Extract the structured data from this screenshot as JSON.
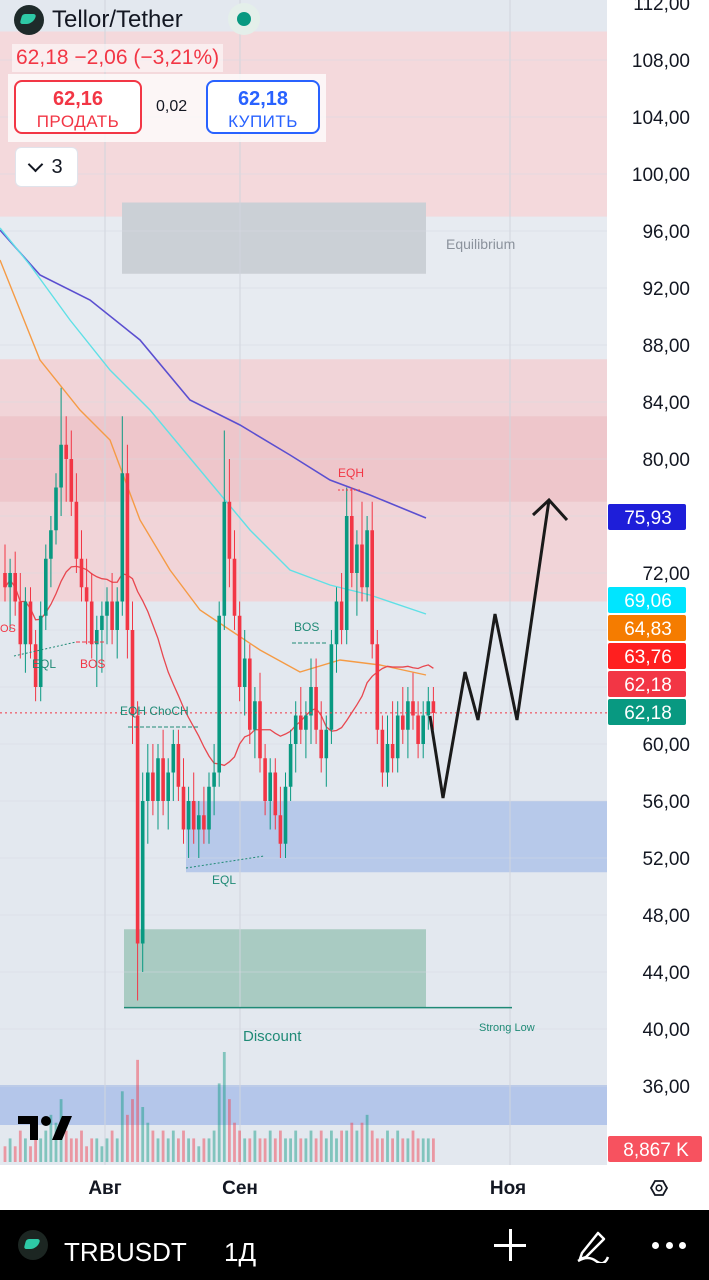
{
  "header": {
    "symbol_title": "Tellor/Tether",
    "price_change": "62,18  −2,06 (−3,21%)",
    "sell_price": "62,16",
    "sell_label": "ПРОДАТЬ",
    "spread": "0,02",
    "buy_price": "62,18",
    "buy_label": "КУПИТЬ",
    "indicators_count": "3"
  },
  "toolbar": {
    "symbol": "TRBUSDT",
    "interval": "1Д"
  },
  "colors": {
    "up": "#089981",
    "down": "#f23645",
    "buy": "#2962ff",
    "premium_zone": "#f7d3d6",
    "discount_zone": "#a8cfc3",
    "demand_zone": "#a9c0ea"
  },
  "chart_data": {
    "type": "candlestick",
    "x_tick_labels": [
      "Авг",
      "Сен",
      "Ноя"
    ],
    "y_ticks": [
      "112,00",
      "108,00",
      "104,00",
      "100,00",
      "96,00",
      "92,00",
      "88,00",
      "84,00",
      "80,00",
      "72,00",
      "60,00",
      "56,00",
      "52,00",
      "48,00",
      "44,00",
      "40,00",
      "36,00"
    ],
    "ylim": [
      31,
      112
    ],
    "grid": true,
    "price_badges": [
      {
        "value": "75,93",
        "color": "#1e1ed9"
      },
      {
        "value": "69,06",
        "color": "#00e5ff"
      },
      {
        "value": "64,83",
        "color": "#f57c00"
      },
      {
        "value": "63,76",
        "color": "#ff1f1f"
      },
      {
        "value": "62,18",
        "color": "#f23645"
      },
      {
        "value": "62,18",
        "color": "#089981"
      },
      {
        "value": "8,867 K",
        "color": "#f7525f"
      }
    ],
    "annotations": [
      "Equilibrium",
      "EQH",
      "BOS",
      "EQL",
      "EQH ChoCH",
      "Discount",
      "Strong Low"
    ],
    "zones": [
      {
        "name": "premium",
        "from": 97,
        "to": 110
      },
      {
        "name": "equilibrium",
        "from": 93,
        "to": 98
      },
      {
        "name": "supply-upper",
        "from": 77,
        "to": 87
      },
      {
        "name": "supply-lower",
        "from": 70,
        "to": 77
      },
      {
        "name": "demand",
        "from": 51,
        "to": 56
      },
      {
        "name": "discount",
        "from": 41.5,
        "to": 47
      }
    ],
    "last_price": 62.18,
    "strong_low": 41.5,
    "candles": [
      {
        "o": 72,
        "h": 74,
        "l": 70,
        "c": 71
      },
      {
        "o": 71,
        "h": 73,
        "l": 68,
        "c": 72
      },
      {
        "o": 72,
        "h": 73.5,
        "l": 69,
        "c": 70
      },
      {
        "o": 70,
        "h": 72,
        "l": 66,
        "c": 67
      },
      {
        "o": 67,
        "h": 71,
        "l": 65,
        "c": 70
      },
      {
        "o": 70,
        "h": 71,
        "l": 66,
        "c": 67
      },
      {
        "o": 67,
        "h": 68,
        "l": 63,
        "c": 64
      },
      {
        "o": 64,
        "h": 70,
        "l": 63,
        "c": 69
      },
      {
        "o": 69,
        "h": 74,
        "l": 68,
        "c": 73
      },
      {
        "o": 73,
        "h": 76,
        "l": 71,
        "c": 75
      },
      {
        "o": 75,
        "h": 79,
        "l": 74,
        "c": 78
      },
      {
        "o": 78,
        "h": 85,
        "l": 76,
        "c": 81
      },
      {
        "o": 81,
        "h": 83,
        "l": 77,
        "c": 80
      },
      {
        "o": 80,
        "h": 82,
        "l": 76,
        "c": 77
      },
      {
        "o": 77,
        "h": 79,
        "l": 72,
        "c": 73
      },
      {
        "o": 73,
        "h": 75,
        "l": 70,
        "c": 71
      },
      {
        "o": 71,
        "h": 73,
        "l": 67,
        "c": 70
      },
      {
        "o": 70,
        "h": 72,
        "l": 66,
        "c": 67
      },
      {
        "o": 67,
        "h": 69,
        "l": 64,
        "c": 68
      },
      {
        "o": 68,
        "h": 70,
        "l": 65,
        "c": 69
      },
      {
        "o": 69,
        "h": 71,
        "l": 67,
        "c": 70
      },
      {
        "o": 70,
        "h": 72,
        "l": 67,
        "c": 68
      },
      {
        "o": 68,
        "h": 71,
        "l": 66,
        "c": 70
      },
      {
        "o": 70,
        "h": 83,
        "l": 69,
        "c": 79
      },
      {
        "o": 79,
        "h": 81,
        "l": 66,
        "c": 68
      },
      {
        "o": 68,
        "h": 70,
        "l": 60,
        "c": 62
      },
      {
        "o": 62,
        "h": 63,
        "l": 42,
        "c": 46
      },
      {
        "o": 46,
        "h": 58,
        "l": 44,
        "c": 56
      },
      {
        "o": 56,
        "h": 60,
        "l": 53,
        "c": 58
      },
      {
        "o": 58,
        "h": 60,
        "l": 55,
        "c": 56
      },
      {
        "o": 56,
        "h": 60,
        "l": 54,
        "c": 59
      },
      {
        "o": 59,
        "h": 61,
        "l": 55,
        "c": 56
      },
      {
        "o": 56,
        "h": 59,
        "l": 54,
        "c": 58
      },
      {
        "o": 58,
        "h": 61,
        "l": 56,
        "c": 60
      },
      {
        "o": 60,
        "h": 61,
        "l": 56,
        "c": 57
      },
      {
        "o": 57,
        "h": 59,
        "l": 53,
        "c": 54
      },
      {
        "o": 54,
        "h": 57,
        "l": 52,
        "c": 56
      },
      {
        "o": 56,
        "h": 58,
        "l": 53,
        "c": 54
      },
      {
        "o": 54,
        "h": 56,
        "l": 52,
        "c": 55
      },
      {
        "o": 55,
        "h": 57,
        "l": 53,
        "c": 54
      },
      {
        "o": 54,
        "h": 58,
        "l": 53,
        "c": 57
      },
      {
        "o": 57,
        "h": 60,
        "l": 55,
        "c": 58
      },
      {
        "o": 58,
        "h": 70,
        "l": 57,
        "c": 69
      },
      {
        "o": 69,
        "h": 82,
        "l": 68,
        "c": 77
      },
      {
        "o": 77,
        "h": 80,
        "l": 71,
        "c": 73
      },
      {
        "o": 73,
        "h": 75,
        "l": 68,
        "c": 69
      },
      {
        "o": 69,
        "h": 70,
        "l": 63,
        "c": 64
      },
      {
        "o": 64,
        "h": 68,
        "l": 62,
        "c": 66
      },
      {
        "o": 66,
        "h": 67,
        "l": 60,
        "c": 61
      },
      {
        "o": 61,
        "h": 64,
        "l": 59,
        "c": 63
      },
      {
        "o": 63,
        "h": 65,
        "l": 58,
        "c": 59
      },
      {
        "o": 59,
        "h": 60,
        "l": 55,
        "c": 56
      },
      {
        "o": 56,
        "h": 59,
        "l": 54,
        "c": 58
      },
      {
        "o": 58,
        "h": 59,
        "l": 54,
        "c": 55
      },
      {
        "o": 55,
        "h": 57,
        "l": 52,
        "c": 53
      },
      {
        "o": 53,
        "h": 58,
        "l": 52,
        "c": 57
      },
      {
        "o": 57,
        "h": 61,
        "l": 56,
        "c": 60
      },
      {
        "o": 60,
        "h": 63,
        "l": 58,
        "c": 62
      },
      {
        "o": 62,
        "h": 64,
        "l": 60,
        "c": 61
      },
      {
        "o": 61,
        "h": 63,
        "l": 59,
        "c": 62
      },
      {
        "o": 62,
        "h": 66,
        "l": 60,
        "c": 64
      },
      {
        "o": 64,
        "h": 66,
        "l": 60,
        "c": 61
      },
      {
        "o": 61,
        "h": 63,
        "l": 58,
        "c": 59
      },
      {
        "o": 59,
        "h": 62,
        "l": 57,
        "c": 61
      },
      {
        "o": 61,
        "h": 68,
        "l": 60,
        "c": 67
      },
      {
        "o": 67,
        "h": 71,
        "l": 65,
        "c": 70
      },
      {
        "o": 70,
        "h": 72,
        "l": 67,
        "c": 68
      },
      {
        "o": 68,
        "h": 78,
        "l": 67,
        "c": 76
      },
      {
        "o": 76,
        "h": 78,
        "l": 71,
        "c": 72
      },
      {
        "o": 72,
        "h": 75,
        "l": 69,
        "c": 74
      },
      {
        "o": 74,
        "h": 77,
        "l": 70,
        "c": 71
      },
      {
        "o": 71,
        "h": 76,
        "l": 70,
        "c": 75
      },
      {
        "o": 75,
        "h": 77,
        "l": 66,
        "c": 67
      },
      {
        "o": 67,
        "h": 68,
        "l": 60,
        "c": 61
      },
      {
        "o": 61,
        "h": 62,
        "l": 57,
        "c": 58
      },
      {
        "o": 58,
        "h": 62,
        "l": 57,
        "c": 60
      },
      {
        "o": 60,
        "h": 63,
        "l": 58,
        "c": 59
      },
      {
        "o": 59,
        "h": 63,
        "l": 58,
        "c": 62
      },
      {
        "o": 62,
        "h": 64,
        "l": 60,
        "c": 61
      },
      {
        "o": 61,
        "h": 64,
        "l": 59,
        "c": 63
      },
      {
        "o": 63,
        "h": 65,
        "l": 61,
        "c": 62
      },
      {
        "o": 62,
        "h": 63,
        "l": 59,
        "c": 60
      },
      {
        "o": 60,
        "h": 63,
        "l": 59,
        "c": 62
      },
      {
        "o": 62,
        "h": 64,
        "l": 61,
        "c": 63
      },
      {
        "o": 63,
        "h": 64,
        "l": 61,
        "c": 62.18
      }
    ],
    "volumes": [
      2,
      3,
      2,
      4,
      3,
      2,
      5,
      3,
      4,
      6,
      5,
      8,
      4,
      3,
      3,
      4,
      2,
      3,
      3,
      2,
      3,
      4,
      3,
      9,
      6,
      8,
      13,
      7,
      5,
      4,
      3,
      4,
      3,
      4,
      3,
      4,
      3,
      3,
      2,
      3,
      3,
      4,
      10,
      14,
      8,
      5,
      4,
      3,
      3,
      4,
      3,
      3,
      4,
      3,
      4,
      3,
      3,
      4,
      3,
      3,
      4,
      3,
      4,
      3,
      4,
      3,
      4,
      4,
      5,
      4,
      5,
      6,
      4,
      3,
      3,
      4,
      3,
      4,
      3,
      3,
      4,
      3,
      3,
      3,
      3
    ]
  }
}
